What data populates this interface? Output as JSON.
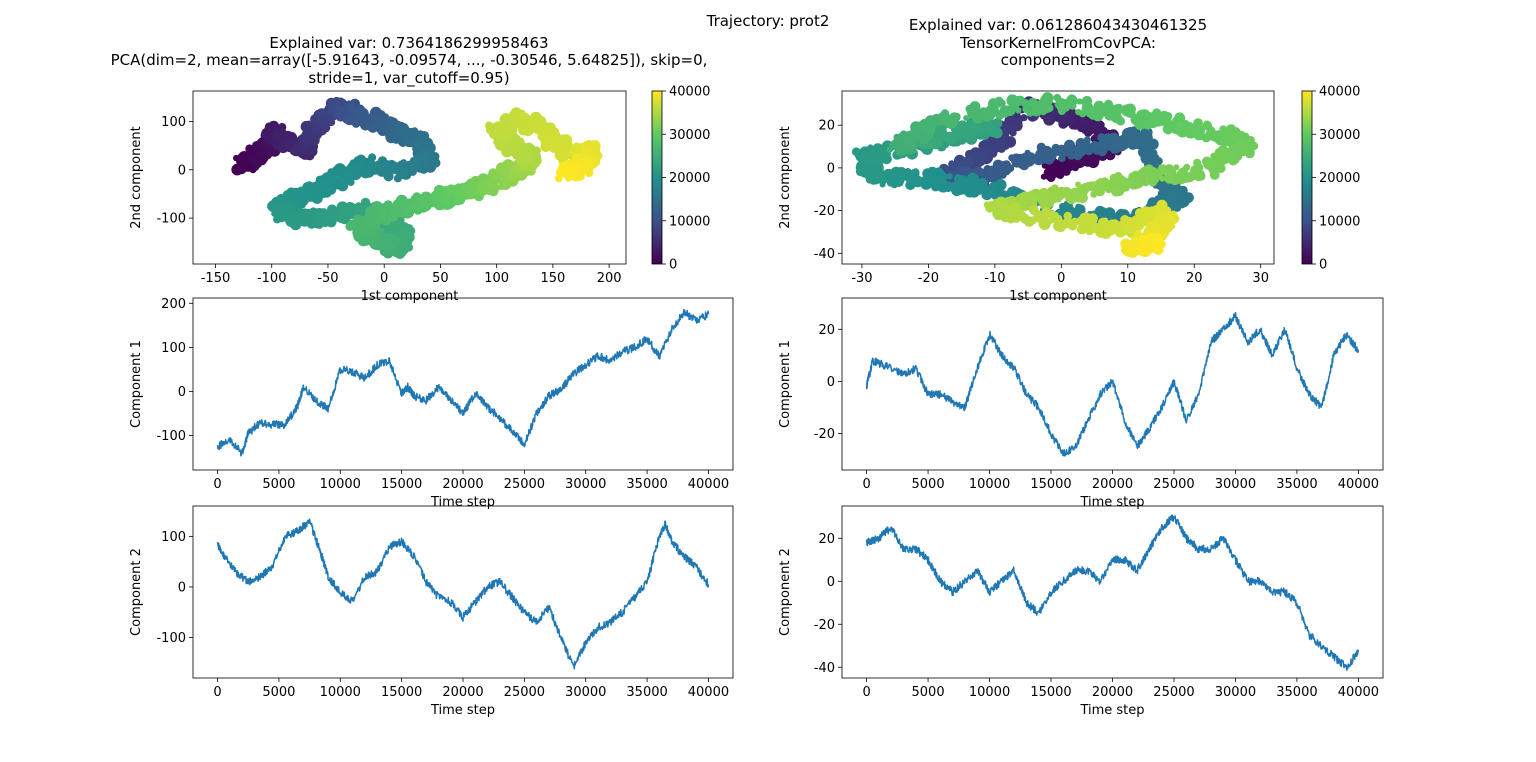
{
  "figure_title": "Trajectory: prot2",
  "colormap": [
    "#440154",
    "#3b528b",
    "#21918c",
    "#5ec962",
    "#fde725"
  ],
  "line_color": "#1f77b4",
  "chart_data": [
    {
      "type": "scatter",
      "title_lines": [
        "Explained var: 0.7364186299958463",
        "PCA(dim=2, mean=array([-5.91643, -0.09574, ..., -0.30546,  5.64825]), skip=0,",
        "stride=1, var_cutoff=0.95)"
      ],
      "xlabel": "1st component",
      "ylabel": "2nd component",
      "xlim": [
        -170,
        215
      ],
      "ylim": [
        -195,
        163
      ],
      "xticks": [
        -150,
        -100,
        -50,
        0,
        50,
        100,
        150,
        200
      ],
      "yticks": [
        -100,
        0,
        100
      ],
      "colorbar": {
        "label_ticks": [
          0,
          10000,
          20000,
          30000,
          40000
        ],
        "range": [
          0,
          40000
        ]
      },
      "x": [
        -125,
        -110,
        -95,
        -100,
        -85,
        -70,
        -60,
        -40,
        -20,
        5,
        20,
        35,
        40,
        10,
        -15,
        -35,
        -55,
        -80,
        -95,
        -80,
        -50,
        -20,
        5,
        20,
        10,
        -10,
        -25,
        -5,
        20,
        45,
        60,
        80,
        95,
        110,
        125,
        130,
        115,
        100,
        120,
        145,
        165,
        185,
        175,
        160
      ],
      "y": [
        10,
        35,
        60,
        80,
        55,
        40,
        95,
        130,
        110,
        90,
        70,
        50,
        20,
        -5,
        15,
        -10,
        -40,
        -60,
        -85,
        -100,
        -100,
        -80,
        -110,
        -140,
        -160,
        -140,
        -120,
        -95,
        -75,
        -60,
        -55,
        -40,
        -30,
        -10,
        10,
        25,
        50,
        80,
        110,
        70,
        30,
        40,
        5,
        -5
      ],
      "t": [
        0,
        1000,
        2000,
        3000,
        4000,
        5000,
        7000,
        9000,
        11000,
        12500,
        14000,
        15000,
        16000,
        17500,
        18500,
        19500,
        20000,
        20500,
        21000,
        21500,
        22000,
        23000,
        24000,
        24500,
        25000,
        26000,
        26500,
        27000,
        28000,
        29000,
        30000,
        31000,
        32000,
        33000,
        34000,
        35000,
        35500,
        36000,
        36500,
        37000,
        37500,
        38500,
        39500,
        40000
      ]
    },
    {
      "type": "scatter",
      "title_lines": [
        "Explained var: 0.061286043430461325",
        "TensorKernelFromCovPCA:",
        "components=2"
      ],
      "xlabel": "1st component",
      "ylabel": "2nd component",
      "xlim": [
        -33,
        32
      ],
      "ylim": [
        -45,
        36
      ],
      "xticks": [
        -30,
        -20,
        -10,
        0,
        10,
        20,
        30
      ],
      "yticks": [
        -40,
        -20,
        0,
        20
      ],
      "colorbar": {
        "label_ticks": [
          0,
          10000,
          20000,
          30000,
          40000
        ],
        "range": [
          0,
          40000
        ]
      },
      "x": [
        -2,
        3,
        8,
        5,
        0,
        -5,
        -10,
        -15,
        -18,
        -12,
        -5,
        5,
        12,
        15,
        18,
        10,
        0,
        -10,
        -20,
        -28,
        -30,
        -22,
        -15,
        -10,
        -18,
        -25,
        -20,
        -10,
        0,
        10,
        18,
        25,
        28,
        22,
        12,
        5,
        -5,
        -10,
        0,
        10,
        16,
        15,
        10,
        15
      ],
      "y": [
        -2,
        5,
        10,
        20,
        25,
        28,
        10,
        0,
        -5,
        -5,
        5,
        10,
        15,
        -5,
        -15,
        -25,
        -20,
        -10,
        -5,
        -5,
        5,
        10,
        15,
        20,
        15,
        10,
        20,
        28,
        30,
        25,
        20,
        15,
        10,
        0,
        -5,
        -10,
        -15,
        -20,
        -25,
        -28,
        -20,
        -30,
        -38,
        -35
      ],
      "t": [
        0,
        1000,
        2000,
        3000,
        4500,
        6000,
        7500,
        9000,
        10000,
        11000,
        12000,
        13000,
        14000,
        15000,
        16000,
        17000,
        18000,
        19000,
        20000,
        21000,
        21500,
        22000,
        22500,
        23000,
        24000,
        25000,
        26000,
        27000,
        28000,
        29000,
        30000,
        30500,
        31000,
        31500,
        32000,
        33000,
        34000,
        35000,
        36000,
        37000,
        38000,
        38500,
        39200,
        40000
      ]
    },
    {
      "type": "line",
      "ylabel": "Component 1",
      "xlabel": "Time step",
      "xlim": [
        -2000,
        42000
      ],
      "ylim": [
        -178,
        212
      ],
      "xticks": [
        0,
        5000,
        10000,
        15000,
        20000,
        25000,
        30000,
        35000,
        40000
      ],
      "yticks": [
        -100,
        0,
        100,
        200
      ],
      "x": [
        0,
        1000,
        2000,
        2500,
        3500,
        4500,
        5500,
        6500,
        7000,
        8000,
        9000,
        10000,
        11000,
        12000,
        13000,
        14000,
        15000,
        15500,
        16000,
        17000,
        18000,
        19000,
        20000,
        21000,
        22000,
        23000,
        24000,
        25000,
        26000,
        27000,
        28000,
        29000,
        30000,
        31000,
        32000,
        33000,
        34000,
        35000,
        36000,
        37000,
        38000,
        39000,
        40000
      ],
      "values": [
        -125,
        -110,
        -140,
        -95,
        -70,
        -75,
        -75,
        -35,
        10,
        -20,
        -40,
        50,
        45,
        30,
        60,
        70,
        -5,
        10,
        -10,
        -20,
        10,
        -20,
        -50,
        -5,
        -35,
        -60,
        -90,
        -120,
        -50,
        -10,
        5,
        40,
        60,
        80,
        70,
        90,
        100,
        120,
        80,
        140,
        180,
        160,
        175
      ]
    },
    {
      "type": "line",
      "ylabel": "Component 1",
      "xlabel": "Time step",
      "xlim": [
        -2000,
        42000
      ],
      "ylim": [
        -34,
        32
      ],
      "xticks": [
        0,
        5000,
        10000,
        15000,
        20000,
        25000,
        30000,
        35000,
        40000
      ],
      "yticks": [
        -20,
        0,
        20
      ],
      "x": [
        0,
        500,
        1500,
        3000,
        4000,
        5000,
        6000,
        7000,
        8000,
        9000,
        10000,
        11000,
        12000,
        13000,
        14000,
        15000,
        16000,
        17000,
        18000,
        19000,
        20000,
        21000,
        22000,
        23000,
        24000,
        25000,
        26000,
        27000,
        28000,
        29000,
        30000,
        31000,
        32000,
        33000,
        34000,
        35000,
        36000,
        37000,
        38000,
        39000,
        40000
      ],
      "values": [
        -2,
        8,
        6,
        3,
        5,
        -5,
        -5,
        -8,
        -10,
        5,
        18,
        10,
        5,
        -5,
        -10,
        -20,
        -28,
        -25,
        -15,
        -5,
        0,
        -15,
        -25,
        -18,
        -10,
        0,
        -15,
        -5,
        15,
        20,
        25,
        15,
        20,
        10,
        20,
        5,
        -5,
        -10,
        10,
        18,
        12
      ]
    },
    {
      "type": "line",
      "ylabel": "Component 2",
      "xlabel": "Time step",
      "xlim": [
        -2000,
        42000
      ],
      "ylim": [
        -180,
        160
      ],
      "xticks": [
        0,
        5000,
        10000,
        15000,
        20000,
        25000,
        30000,
        35000,
        40000
      ],
      "yticks": [
        -100,
        0,
        100
      ],
      "x": [
        0,
        500,
        1500,
        2500,
        3500,
        4500,
        5500,
        6500,
        7500,
        8500,
        9000,
        10000,
        11000,
        12000,
        13000,
        14000,
        15000,
        16000,
        17000,
        18000,
        19000,
        20000,
        21000,
        22000,
        23000,
        24000,
        25000,
        26000,
        27000,
        28000,
        29000,
        30000,
        31000,
        32000,
        33000,
        34000,
        35000,
        36000,
        36500,
        37000,
        38000,
        39000,
        40000
      ],
      "values": [
        85,
        60,
        30,
        10,
        20,
        40,
        100,
        110,
        130,
        60,
        20,
        -10,
        -30,
        20,
        30,
        80,
        90,
        60,
        10,
        -20,
        -30,
        -60,
        -30,
        0,
        10,
        -20,
        -50,
        -70,
        -40,
        -100,
        -160,
        -110,
        -80,
        -70,
        -50,
        -20,
        10,
        100,
        125,
        90,
        60,
        40,
        5
      ]
    },
    {
      "type": "line",
      "ylabel": "Component 2",
      "xlabel": "Time step",
      "xlim": [
        -2000,
        42000
      ],
      "ylim": [
        -45,
        35
      ],
      "xticks": [
        0,
        5000,
        10000,
        15000,
        20000,
        25000,
        30000,
        35000,
        40000
      ],
      "yticks": [
        -40,
        -20,
        0,
        20
      ],
      "x": [
        0,
        1000,
        2000,
        3000,
        4000,
        5000,
        6000,
        7000,
        8000,
        9000,
        10000,
        11000,
        12000,
        13000,
        14000,
        15000,
        16000,
        17000,
        18000,
        19000,
        20000,
        21000,
        22000,
        23000,
        24000,
        25000,
        26000,
        27000,
        28000,
        29000,
        30000,
        31000,
        32000,
        33000,
        34000,
        35000,
        36000,
        37000,
        38000,
        39000,
        40000
      ],
      "values": [
        18,
        20,
        25,
        15,
        15,
        10,
        0,
        -5,
        0,
        5,
        -5,
        0,
        5,
        -10,
        -15,
        -5,
        0,
        5,
        5,
        0,
        10,
        10,
        5,
        15,
        25,
        30,
        20,
        15,
        15,
        20,
        10,
        0,
        0,
        -5,
        -5,
        -10,
        -25,
        -30,
        -35,
        -40,
        -33
      ]
    }
  ]
}
